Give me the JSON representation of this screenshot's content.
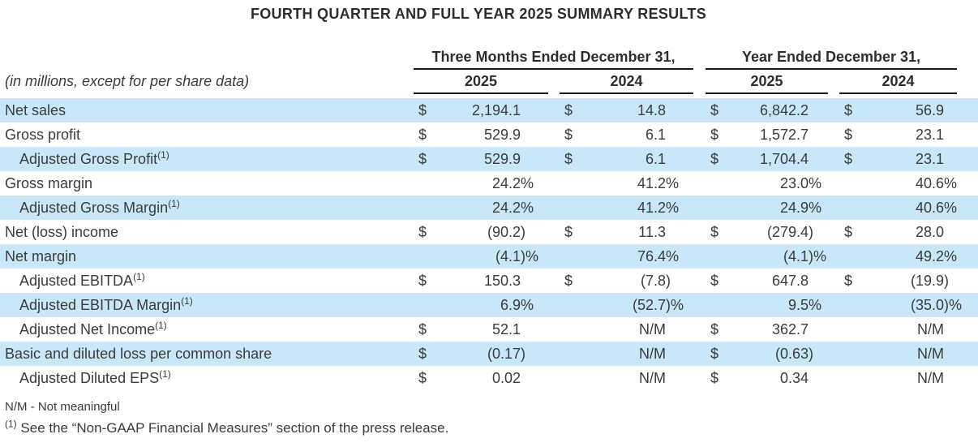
{
  "title": "FOURTH QUARTER AND FULL YEAR 2025 SUMMARY RESULTS",
  "table": {
    "units_note": "(in millions, except for per share data)",
    "col_groups": [
      {
        "label": "Three Months Ended December 31,",
        "years": [
          "2025",
          "2024"
        ]
      },
      {
        "label": "Year Ended December 31,",
        "years": [
          "2025",
          "2024"
        ]
      }
    ],
    "highlight_color": "#c8e8fa",
    "rows": [
      {
        "label": "Net sales",
        "sup": "",
        "indent": false,
        "highlight": true,
        "cells": [
          {
            "sym": "$",
            "num": "2,194.1",
            "suf": ""
          },
          {
            "sym": "$",
            "num": "14.8",
            "suf": ""
          },
          {
            "sym": "$",
            "num": "6,842.2",
            "suf": ""
          },
          {
            "sym": "$",
            "num": "56.9",
            "suf": ""
          }
        ]
      },
      {
        "label": "Gross profit",
        "sup": "",
        "indent": false,
        "highlight": false,
        "cells": [
          {
            "sym": "$",
            "num": "529.9",
            "suf": ""
          },
          {
            "sym": "$",
            "num": "6.1",
            "suf": ""
          },
          {
            "sym": "$",
            "num": "1,572.7",
            "suf": ""
          },
          {
            "sym": "$",
            "num": "23.1",
            "suf": ""
          }
        ]
      },
      {
        "label": "Adjusted Gross Profit",
        "sup": "(1)",
        "indent": true,
        "highlight": true,
        "cells": [
          {
            "sym": "$",
            "num": "529.9",
            "suf": ""
          },
          {
            "sym": "$",
            "num": "6.1",
            "suf": ""
          },
          {
            "sym": "$",
            "num": "1,704.4",
            "suf": ""
          },
          {
            "sym": "$",
            "num": "23.1",
            "suf": ""
          }
        ]
      },
      {
        "label": "Gross margin",
        "sup": "",
        "indent": false,
        "highlight": false,
        "cells": [
          {
            "sym": "",
            "num": "24.2",
            "suf": "%"
          },
          {
            "sym": "",
            "num": "41.2",
            "suf": "%"
          },
          {
            "sym": "",
            "num": "23.0",
            "suf": "%"
          },
          {
            "sym": "",
            "num": "40.6",
            "suf": "%"
          }
        ]
      },
      {
        "label": "Adjusted Gross Margin",
        "sup": "(1)",
        "indent": true,
        "highlight": true,
        "cells": [
          {
            "sym": "",
            "num": "24.2",
            "suf": "%"
          },
          {
            "sym": "",
            "num": "41.2",
            "suf": "%"
          },
          {
            "sym": "",
            "num": "24.9",
            "suf": "%"
          },
          {
            "sym": "",
            "num": "40.6",
            "suf": "%"
          }
        ]
      },
      {
        "label": "Net (loss) income",
        "sup": "",
        "indent": false,
        "highlight": false,
        "cells": [
          {
            "sym": "$",
            "num": "(90.2",
            "suf": ")"
          },
          {
            "sym": "$",
            "num": "11.3",
            "suf": ""
          },
          {
            "sym": "$",
            "num": "(279.4",
            "suf": ")"
          },
          {
            "sym": "$",
            "num": "28.0",
            "suf": ""
          }
        ]
      },
      {
        "label": "Net margin",
        "sup": "",
        "indent": false,
        "highlight": true,
        "cells": [
          {
            "sym": "",
            "num": "(4.1",
            "suf": ")%"
          },
          {
            "sym": "",
            "num": "76.4",
            "suf": "%"
          },
          {
            "sym": "",
            "num": "(4.1",
            "suf": ")%"
          },
          {
            "sym": "",
            "num": "49.2",
            "suf": "%"
          }
        ]
      },
      {
        "label": "Adjusted EBITDA",
        "sup": "(1)",
        "indent": true,
        "highlight": false,
        "cells": [
          {
            "sym": "$",
            "num": "150.3",
            "suf": ""
          },
          {
            "sym": "$",
            "num": "(7.8",
            "suf": ")"
          },
          {
            "sym": "$",
            "num": "647.8",
            "suf": ""
          },
          {
            "sym": "$",
            "num": "(19.9",
            "suf": ")"
          }
        ]
      },
      {
        "label": "Adjusted EBITDA Margin",
        "sup": "(1)",
        "indent": true,
        "highlight": true,
        "cells": [
          {
            "sym": "",
            "num": "6.9",
            "suf": "%"
          },
          {
            "sym": "",
            "num": "(52.7",
            "suf": ")%"
          },
          {
            "sym": "",
            "num": "9.5",
            "suf": "%"
          },
          {
            "sym": "",
            "num": "(35.0",
            "suf": ")%"
          }
        ]
      },
      {
        "label": "Adjusted Net Income",
        "sup": "(1)",
        "indent": true,
        "highlight": false,
        "cells": [
          {
            "sym": "$",
            "num": "52.1",
            "suf": ""
          },
          {
            "sym": "",
            "num": "N/M",
            "suf": ""
          },
          {
            "sym": "$",
            "num": "362.7",
            "suf": ""
          },
          {
            "sym": "",
            "num": "N/M",
            "suf": ""
          }
        ]
      },
      {
        "label": "Basic and diluted loss per common share",
        "sup": "",
        "indent": false,
        "highlight": true,
        "cells": [
          {
            "sym": "$",
            "num": "(0.17",
            "suf": ")"
          },
          {
            "sym": "",
            "num": "N/M",
            "suf": ""
          },
          {
            "sym": "$",
            "num": "(0.63",
            "suf": ")"
          },
          {
            "sym": "",
            "num": "N/M",
            "suf": ""
          }
        ]
      },
      {
        "label": "Adjusted Diluted EPS",
        "sup": "(1)",
        "indent": true,
        "highlight": false,
        "cells": [
          {
            "sym": "$",
            "num": "0.02",
            "suf": ""
          },
          {
            "sym": "",
            "num": "N/M",
            "suf": ""
          },
          {
            "sym": "$",
            "num": "0.34",
            "suf": ""
          },
          {
            "sym": "",
            "num": "N/M",
            "suf": ""
          }
        ]
      }
    ]
  },
  "footnotes": {
    "nm": "N/M - Not meaningful",
    "fn1_sup": "(1)",
    "fn1_text": "See the “Non-GAAP Financial Measures” section of the press release."
  }
}
